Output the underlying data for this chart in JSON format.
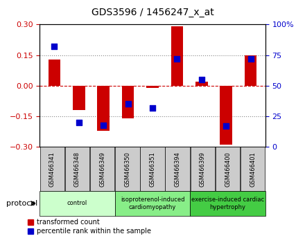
{
  "title": "GDS3596 / 1456247_x_at",
  "samples": [
    "GSM466341",
    "GSM466348",
    "GSM466349",
    "GSM466350",
    "GSM466351",
    "GSM466394",
    "GSM466399",
    "GSM466400",
    "GSM466401"
  ],
  "transformed_counts": [
    0.13,
    -0.12,
    -0.22,
    -0.16,
    -0.01,
    0.29,
    0.02,
    -0.29,
    0.15
  ],
  "percentile_ranks": [
    82,
    20,
    18,
    35,
    32,
    72,
    55,
    17,
    72
  ],
  "ylim_left": [
    -0.3,
    0.3
  ],
  "ylim_right": [
    0,
    100
  ],
  "yticks_left": [
    -0.3,
    -0.15,
    0,
    0.15,
    0.3
  ],
  "yticks_right": [
    0,
    25,
    50,
    75,
    100
  ],
  "groups": [
    {
      "label": "control",
      "start": 0,
      "end": 3,
      "color": "#ccffcc"
    },
    {
      "label": "isoproterenol-induced\ncardiomyopathy",
      "start": 3,
      "end": 6,
      "color": "#88ee88"
    },
    {
      "label": "exercise-induced cardiac\nhypertrophy",
      "start": 6,
      "end": 9,
      "color": "#44cc44"
    }
  ],
  "bar_color": "#cc0000",
  "dot_color": "#0000cc",
  "bar_width": 0.5,
  "dot_size": 30,
  "zero_line_color": "#cc0000",
  "grid_color": "#888888",
  "sample_box_color": "#cccccc",
  "legend_bar_label": "transformed count",
  "legend_dot_label": "percentile rank within the sample",
  "protocol_label": "protocol"
}
